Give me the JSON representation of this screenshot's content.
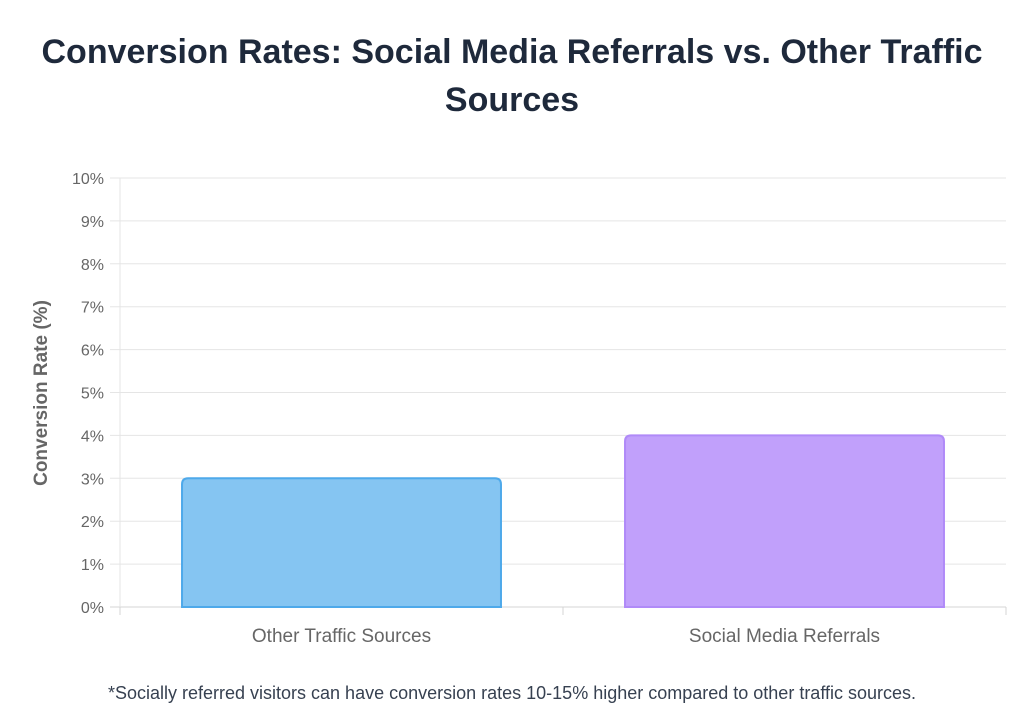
{
  "chart_data": {
    "type": "bar",
    "title": "Conversion Rates: Social Media Referrals vs. Other Traffic Sources",
    "ylabel": "Conversion Rate (%)",
    "xlabel": "",
    "categories": [
      "Other Traffic Sources",
      "Social Media Referrals"
    ],
    "values": [
      3,
      4
    ],
    "ylim": [
      0,
      10
    ],
    "y_ticks": [
      "0%",
      "1%",
      "2%",
      "3%",
      "4%",
      "5%",
      "6%",
      "7%",
      "8%",
      "9%",
      "10%"
    ],
    "grid": true,
    "legend": "none",
    "colors": {
      "bars": [
        "#85c5f2",
        "#c1a0fb"
      ],
      "bar_borders": [
        "#4ea9ea",
        "#b08af8"
      ],
      "grid": "#e5e5e5",
      "title": "#1e293b",
      "tick": "#666666"
    }
  },
  "footnote": "*Socially referred visitors can have conversion rates 10-15% higher compared to other traffic sources."
}
